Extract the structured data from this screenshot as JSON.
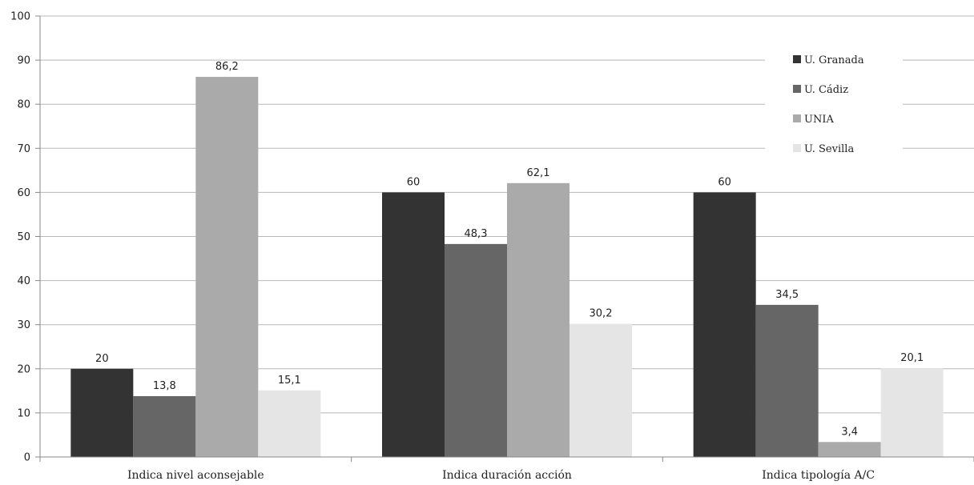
{
  "chart_data": {
    "type": "bar",
    "categories": [
      "Indica nivel aconsejable",
      "Indica duración acción",
      "Indica tipología A/C"
    ],
    "series": [
      {
        "name": "U. Granada",
        "values": [
          20,
          60,
          60
        ],
        "labels": [
          "20",
          "60",
          "60"
        ],
        "color": "#333333"
      },
      {
        "name": "U. Cádiz",
        "values": [
          13.8,
          48.3,
          34.5
        ],
        "labels": [
          "13,8",
          "48,3",
          "34,5"
        ],
        "color": "#666666"
      },
      {
        "name": "UNIA",
        "values": [
          86.2,
          62.1,
          3.4
        ],
        "labels": [
          "86,2",
          "62,1",
          "3,4"
        ],
        "color": "#aaaaaa"
      },
      {
        "name": "U. Sevilla",
        "values": [
          15.1,
          30.2,
          20.1
        ],
        "labels": [
          "15,1",
          "30,2",
          "20,1"
        ],
        "color": "#e5e5e5"
      }
    ],
    "ylim": [
      0,
      100
    ],
    "yticks": [
      "0",
      "10",
      "20",
      "30",
      "40",
      "50",
      "60",
      "70",
      "80",
      "90",
      "100"
    ],
    "grid": true,
    "legend": "top-right"
  }
}
